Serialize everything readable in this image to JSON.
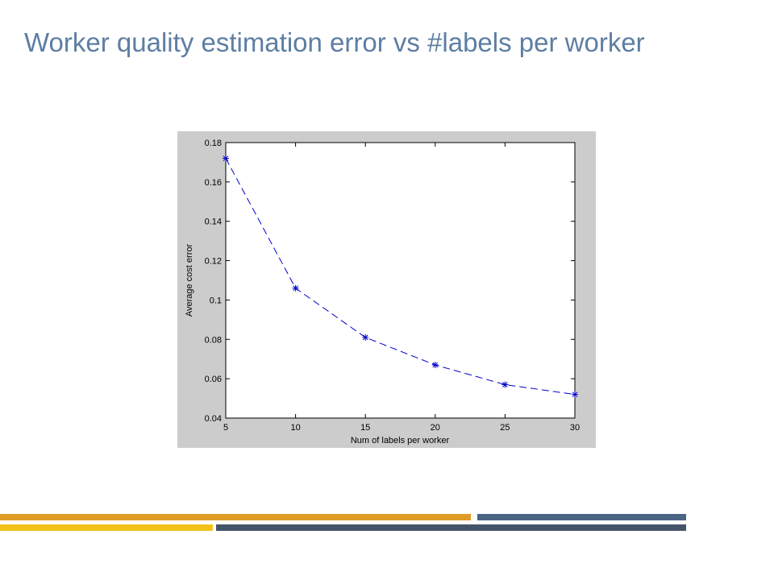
{
  "slide": {
    "title": "Worker quality estimation error vs #labels per worker"
  },
  "chart_data": {
    "type": "line",
    "xlabel": "Num of labels per worker",
    "ylabel": "Average cost error",
    "xlim": [
      5,
      30
    ],
    "ylim": [
      0.04,
      0.18
    ],
    "xticks": [
      "5",
      "10",
      "15",
      "20",
      "25",
      "30"
    ],
    "yticks": [
      "0.04",
      "0.06",
      "0.08",
      "0.1",
      "0.12",
      "0.14",
      "0.16",
      "0.18"
    ],
    "grid": false,
    "series": [
      {
        "x": [
          5,
          10,
          15,
          20,
          25,
          30
        ],
        "y": [
          0.172,
          0.106,
          0.081,
          0.067,
          0.057,
          0.052
        ],
        "color": "#0000cc",
        "line_style": "dashed",
        "marker": "asterisk"
      }
    ]
  },
  "decor": {
    "accent_orange": "#e09b27",
    "accent_yellow": "#f2c21b",
    "accent_slate": "#44546a",
    "accent_slate_light": "#4a6583"
  }
}
